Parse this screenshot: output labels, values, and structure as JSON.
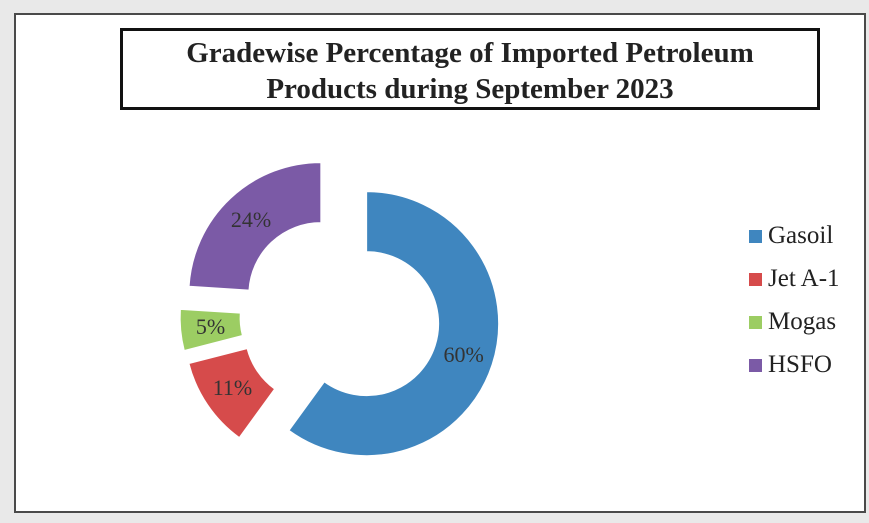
{
  "chart_data": {
    "type": "pie",
    "title_lines": [
      "Gradewise Percentage of Imported Petroleum",
      "Products during September 2023"
    ],
    "categories": [
      "Gasoil",
      "Jet A-1",
      "Mogas",
      "HSFO"
    ],
    "values": [
      60,
      11,
      5,
      24
    ],
    "data_labels": [
      "60%",
      "11%",
      "5%",
      "24%"
    ],
    "colors": [
      "#3f86bf",
      "#d64b4b",
      "#9ccd63",
      "#7b5aa6"
    ],
    "legend_position": "right",
    "style": "exploded donut"
  }
}
